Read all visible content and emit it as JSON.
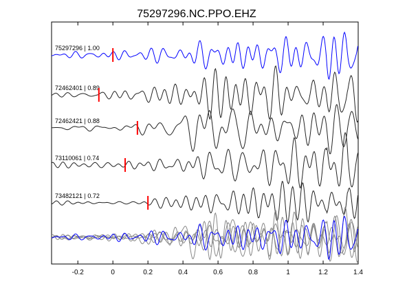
{
  "chart_data": {
    "type": "line",
    "title": "75297296.NC.PPO.EHZ",
    "xlabel": "",
    "ylabel": "",
    "xlim": [
      -0.35,
      1.4
    ],
    "xticks": [
      -0.2,
      0,
      0.2,
      0.4,
      0.6,
      0.8,
      1,
      1.2,
      1.4
    ],
    "xtick_labels": [
      "-0.2",
      "0",
      "0.2",
      "0.4",
      "0.6",
      "0.8",
      "1",
      "1.2",
      "1.4"
    ],
    "grid": false,
    "colors": {
      "reference": "#0000ff",
      "trace": "#222222",
      "pick": "#ff0000",
      "overlay_gray": "#888888"
    },
    "series": [
      {
        "label": "75297296 | 1.00",
        "pick_time": 0.0
      },
      {
        "label": "72462401 | 0.89",
        "pick_time": -0.08
      },
      {
        "label": "72462421 | 0.88",
        "pick_time": 0.14
      },
      {
        "label": "73110061 | 0.74",
        "pick_time": 0.07
      },
      {
        "label": "73482121 | 0.72",
        "pick_time": 0.2
      }
    ]
  }
}
